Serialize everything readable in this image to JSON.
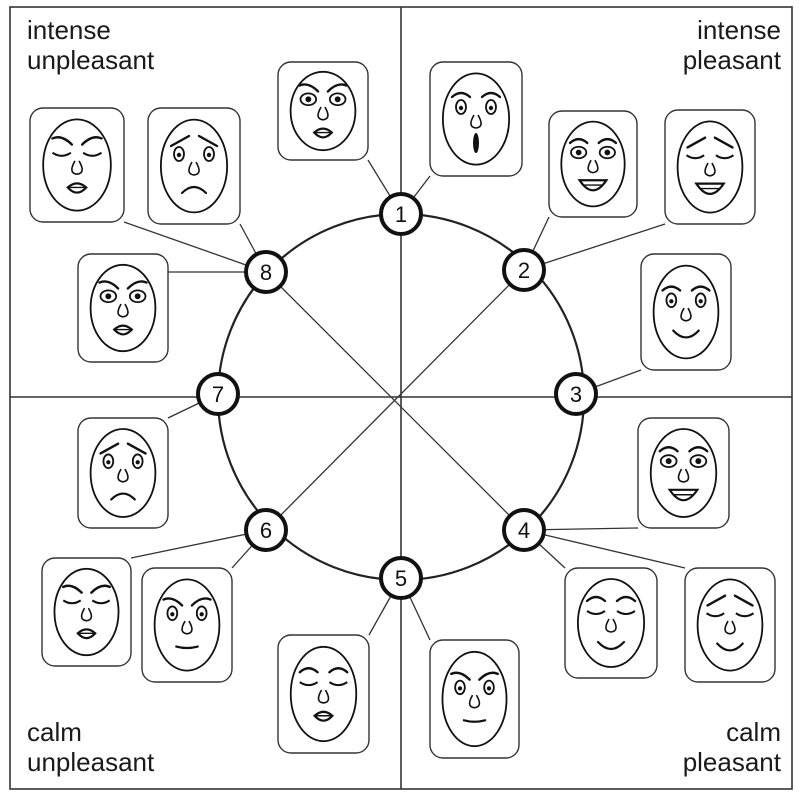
{
  "quadrants": {
    "top_left": {
      "line1": "intense",
      "line2": "unpleasant"
    },
    "top_right": {
      "line1": "intense",
      "line2": "pleasant"
    },
    "bottom_left": {
      "line1": "calm",
      "line2": "unpleasant"
    },
    "bottom_right": {
      "line1": "calm",
      "line2": "pleasant"
    }
  },
  "nodes": [
    "1",
    "2",
    "3",
    "4",
    "5",
    "6",
    "7",
    "8"
  ]
}
